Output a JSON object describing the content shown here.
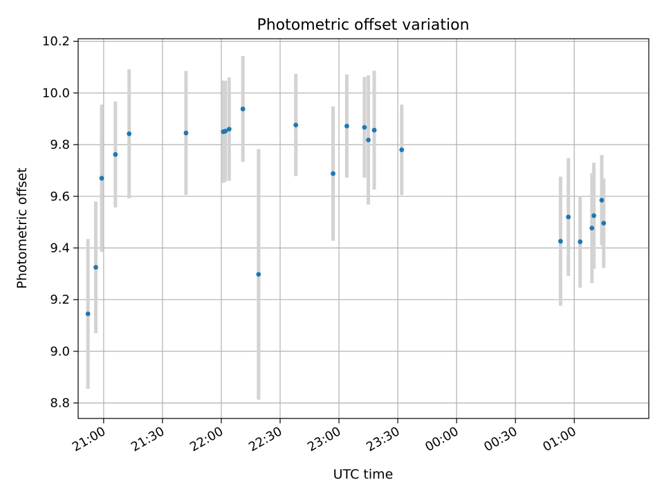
{
  "chart_data": {
    "type": "scatter",
    "title": "Photometric offset variation",
    "xlabel": "UTC time",
    "ylabel": "Photometric offset",
    "x_type": "time",
    "xlim": [
      "20:47",
      "01:38"
    ],
    "ylim": [
      8.74,
      10.21
    ],
    "xticks": [
      "21:00",
      "21:30",
      "22:00",
      "22:30",
      "23:00",
      "23:30",
      "00:00",
      "00:30",
      "01:00"
    ],
    "yticks": [
      "8.8",
      "9.0",
      "9.2",
      "9.4",
      "9.6",
      "9.8",
      "10.0",
      "10.2"
    ],
    "grid": true,
    "colors": {
      "point": "#1f77b4",
      "errorbar": "#d3d3d3",
      "grid": "#b0b0b0"
    },
    "series": [
      {
        "points": [
          {
            "x": "20:52",
            "y": 9.145,
            "err": 0.29
          },
          {
            "x": "20:56",
            "y": 9.325,
            "err": 0.255
          },
          {
            "x": "20:59",
            "y": 9.67,
            "err": 0.285
          },
          {
            "x": "21:06",
            "y": 9.762,
            "err": 0.205
          },
          {
            "x": "21:13",
            "y": 9.842,
            "err": 0.25
          },
          {
            "x": "21:42",
            "y": 9.845,
            "err": 0.24
          },
          {
            "x": "22:01",
            "y": 9.85,
            "err": 0.198
          },
          {
            "x": "22:02",
            "y": 9.852,
            "err": 0.195
          },
          {
            "x": "22:04",
            "y": 9.86,
            "err": 0.2
          },
          {
            "x": "22:11",
            "y": 9.938,
            "err": 0.205
          },
          {
            "x": "22:19",
            "y": 9.298,
            "err": 0.485
          },
          {
            "x": "22:38",
            "y": 9.876,
            "err": 0.198
          },
          {
            "x": "22:57",
            "y": 9.688,
            "err": 0.26
          },
          {
            "x": "23:04",
            "y": 9.872,
            "err": 0.2
          },
          {
            "x": "23:13",
            "y": 9.867,
            "err": 0.195
          },
          {
            "x": "23:15",
            "y": 9.818,
            "err": 0.25
          },
          {
            "x": "23:18",
            "y": 9.856,
            "err": 0.23
          },
          {
            "x": "23:32",
            "y": 9.78,
            "err": 0.175
          },
          {
            "x": "00:53",
            "y": 9.426,
            "err": 0.25
          },
          {
            "x": "00:57",
            "y": 9.52,
            "err": 0.228
          },
          {
            "x": "01:03",
            "y": 9.424,
            "err": 0.178
          },
          {
            "x": "01:09",
            "y": 9.477,
            "err": 0.213
          },
          {
            "x": "01:10",
            "y": 9.525,
            "err": 0.205
          },
          {
            "x": "01:14",
            "y": 9.585,
            "err": 0.175
          },
          {
            "x": "01:15",
            "y": 9.496,
            "err": 0.173
          }
        ]
      }
    ]
  }
}
